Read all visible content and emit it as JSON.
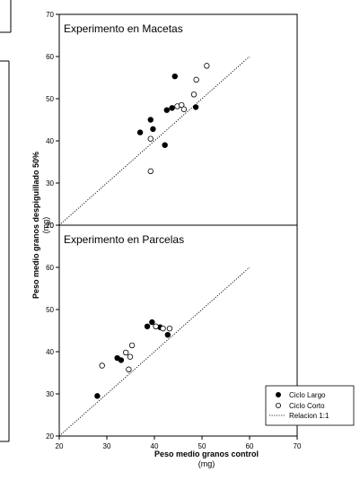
{
  "chart_data": {
    "type": "scatter",
    "xlabel": "Peso medio granos control",
    "xunit": "(mg)",
    "ylabel": "Peso medio granos despiguillado 50%",
    "yunit": "(mg)",
    "xlim": [
      20,
      70
    ],
    "xticks": [
      20,
      30,
      40,
      50,
      60,
      70
    ],
    "legend_position": "bottom-right",
    "legend": [
      {
        "label": "Ciclo Largo",
        "marker": "filled-circle"
      },
      {
        "label": "Ciclo Corto",
        "marker": "open-circle"
      },
      {
        "label": "Relacion 1:1",
        "marker": "dotted-line"
      }
    ],
    "panels": [
      {
        "title": "Experimento en Macetas",
        "ylim": [
          20,
          70
        ],
        "yticks": [
          20,
          30,
          40,
          50,
          60,
          70
        ],
        "reference_line": {
          "x": [
            20,
            60
          ],
          "y": [
            20,
            60
          ]
        },
        "series": [
          {
            "name": "Ciclo Largo",
            "filled": true,
            "x": [
              37.0,
              39.2,
              39.7,
              42.2,
              42.6,
              43.7,
              44.3,
              48.7
            ],
            "y": [
              42.0,
              45.0,
              42.8,
              39.0,
              47.3,
              47.8,
              55.3,
              48.0
            ]
          },
          {
            "name": "Ciclo Corto",
            "filled": false,
            "x": [
              39.2,
              39.2,
              44.8,
              45.7,
              46.2,
              48.3,
              48.8,
              51.0
            ],
            "y": [
              32.8,
              40.5,
              48.2,
              48.5,
              47.5,
              51.0,
              54.5,
              57.8
            ]
          }
        ]
      },
      {
        "title": "Experimento en Parcelas",
        "ylim": [
          20,
          70
        ],
        "yticks": [
          20,
          30,
          40,
          50,
          60,
          70
        ],
        "reference_line": {
          "x": [
            20,
            60
          ],
          "y": [
            20,
            60
          ]
        },
        "series": [
          {
            "name": "Ciclo Largo",
            "filled": true,
            "x": [
              28.0,
              32.2,
              33.0,
              38.5,
              39.5,
              41.2,
              42.8
            ],
            "y": [
              29.5,
              38.5,
              38.0,
              46.0,
              47.0,
              45.8,
              44.0
            ]
          },
          {
            "name": "Ciclo Corto",
            "filled": false,
            "x": [
              29.0,
              34.0,
              34.6,
              34.9,
              35.3,
              40.3,
              41.8,
              43.2
            ],
            "y": [
              36.7,
              39.8,
              35.8,
              38.8,
              41.5,
              46.0,
              45.5,
              45.5
            ]
          }
        ]
      }
    ]
  }
}
